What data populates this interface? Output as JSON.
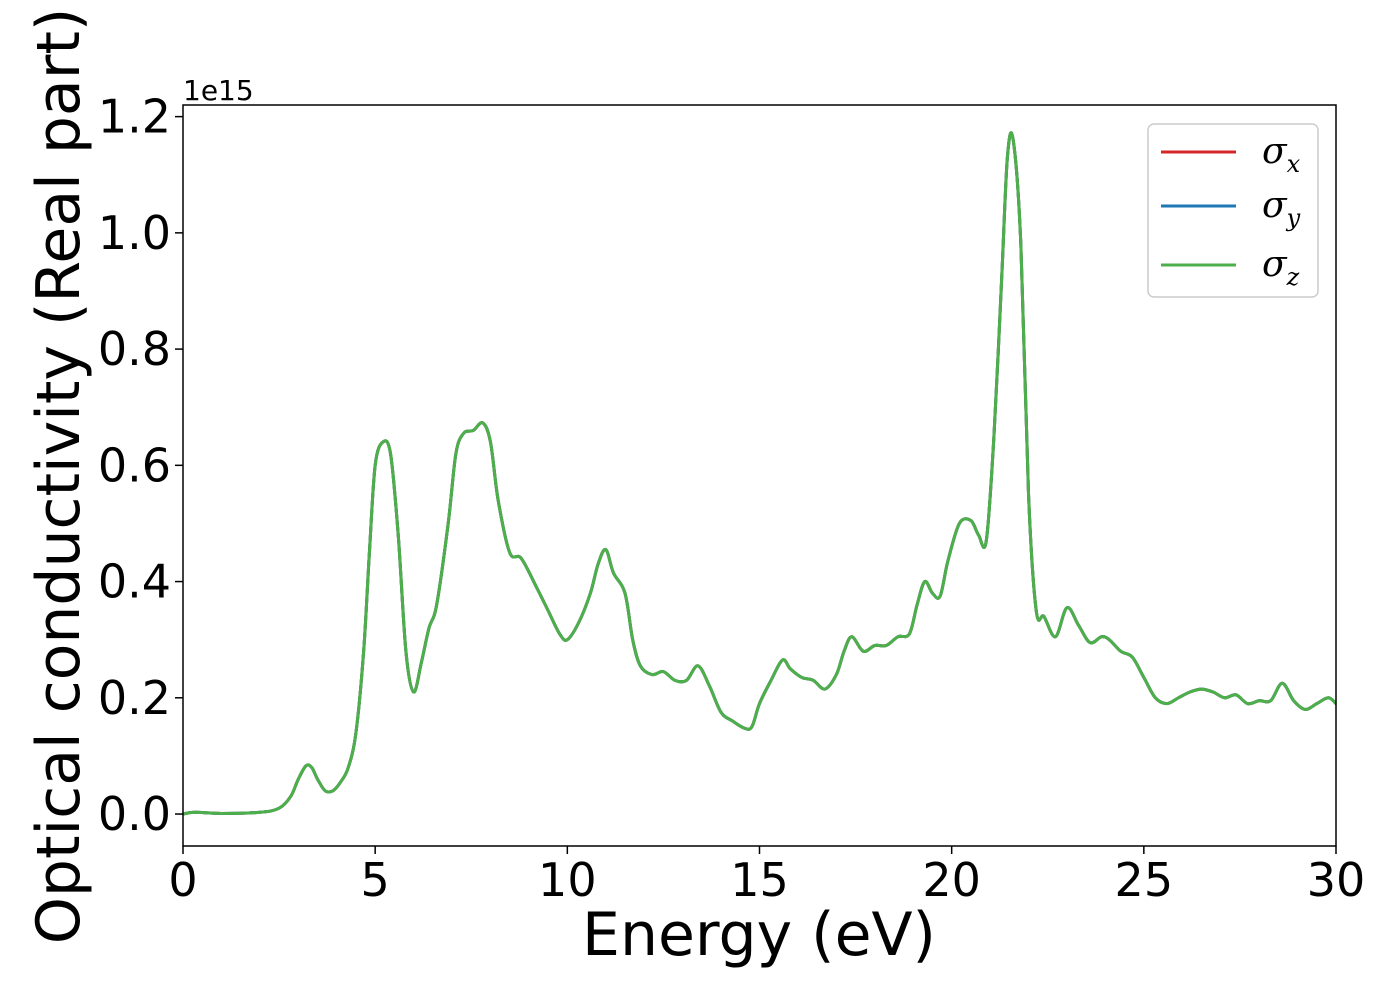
{
  "chart_data": {
    "type": "line",
    "title": "",
    "xlabel": "Energy (eV)",
    "ylabel": "Optical conductivity (Real part)",
    "y_offset_text": "1e15",
    "y_scale": 1000000000000000.0,
    "xlim": [
      0,
      30
    ],
    "ylim": [
      -0.055,
      1.22
    ],
    "xticks": [
      0,
      5,
      10,
      15,
      20,
      25,
      30
    ],
    "xtick_labels": [
      "0",
      "5",
      "10",
      "15",
      "20",
      "25",
      "30"
    ],
    "yticks": [
      0.0,
      0.2,
      0.4,
      0.6,
      0.8,
      1.0,
      1.2
    ],
    "ytick_labels": [
      "0.0",
      "0.2",
      "0.4",
      "0.6",
      "0.8",
      "1.0",
      "1.2"
    ],
    "grid": false,
    "legend_position": "top-right",
    "series": [
      {
        "name": "σx",
        "symbol": "σ",
        "subscript": "x",
        "color": "#d62728",
        "x": [
          0,
          0.3,
          1.0,
          2.0,
          2.5,
          2.8,
          3.0,
          3.2,
          3.35,
          3.5,
          3.7,
          3.9,
          4.1,
          4.3,
          4.5,
          4.7,
          4.85,
          5.0,
          5.2,
          5.4,
          5.6,
          5.8,
          6.0,
          6.2,
          6.4,
          6.6,
          6.9,
          7.1,
          7.3,
          7.55,
          7.8,
          8.0,
          8.2,
          8.5,
          8.8,
          9.2,
          9.5,
          9.8,
          10.0,
          10.3,
          10.6,
          10.8,
          11.0,
          11.2,
          11.5,
          11.7,
          11.9,
          12.2,
          12.5,
          12.8,
          13.1,
          13.4,
          13.7,
          14.0,
          14.3,
          14.6,
          14.8,
          15.0,
          15.3,
          15.6,
          15.8,
          16.1,
          16.4,
          16.7,
          17.0,
          17.2,
          17.4,
          17.7,
          18.0,
          18.3,
          18.6,
          18.9,
          19.1,
          19.3,
          19.5,
          19.7,
          19.9,
          20.2,
          20.5,
          20.7,
          20.9,
          21.1,
          21.3,
          21.45,
          21.6,
          21.8,
          22.0,
          22.2,
          22.4,
          22.7,
          23.0,
          23.3,
          23.6,
          23.9,
          24.1,
          24.4,
          24.7,
          25.0,
          25.3,
          25.6,
          25.9,
          26.2,
          26.5,
          26.8,
          27.1,
          27.4,
          27.7,
          28.0,
          28.3,
          28.6,
          28.9,
          29.2,
          29.5,
          29.8,
          30.0
        ],
        "y": [
          0.0,
          0.003,
          0.001,
          0.003,
          0.01,
          0.03,
          0.06,
          0.083,
          0.08,
          0.06,
          0.04,
          0.04,
          0.055,
          0.08,
          0.14,
          0.28,
          0.45,
          0.6,
          0.64,
          0.62,
          0.48,
          0.28,
          0.21,
          0.26,
          0.32,
          0.36,
          0.5,
          0.62,
          0.655,
          0.66,
          0.673,
          0.64,
          0.54,
          0.45,
          0.44,
          0.39,
          0.35,
          0.31,
          0.3,
          0.33,
          0.38,
          0.43,
          0.455,
          0.415,
          0.38,
          0.3,
          0.255,
          0.24,
          0.245,
          0.23,
          0.23,
          0.255,
          0.22,
          0.175,
          0.16,
          0.148,
          0.15,
          0.19,
          0.23,
          0.265,
          0.25,
          0.235,
          0.23,
          0.215,
          0.24,
          0.28,
          0.305,
          0.28,
          0.29,
          0.29,
          0.305,
          0.31,
          0.36,
          0.4,
          0.38,
          0.375,
          0.435,
          0.5,
          0.505,
          0.48,
          0.47,
          0.65,
          0.92,
          1.13,
          1.16,
          0.98,
          0.55,
          0.35,
          0.34,
          0.305,
          0.355,
          0.325,
          0.295,
          0.305,
          0.3,
          0.28,
          0.27,
          0.235,
          0.2,
          0.19,
          0.2,
          0.21,
          0.215,
          0.21,
          0.2,
          0.205,
          0.19,
          0.195,
          0.195,
          0.225,
          0.195,
          0.18,
          0.19,
          0.2,
          0.19
        ]
      },
      {
        "name": "σy",
        "symbol": "σ",
        "subscript": "y",
        "color": "#1f77b4",
        "x": [
          0,
          0.3,
          1.0,
          2.0,
          2.5,
          2.8,
          3.0,
          3.2,
          3.35,
          3.5,
          3.7,
          3.9,
          4.1,
          4.3,
          4.5,
          4.7,
          4.85,
          5.0,
          5.2,
          5.4,
          5.6,
          5.8,
          6.0,
          6.2,
          6.4,
          6.6,
          6.9,
          7.1,
          7.3,
          7.55,
          7.8,
          8.0,
          8.2,
          8.5,
          8.8,
          9.2,
          9.5,
          9.8,
          10.0,
          10.3,
          10.6,
          10.8,
          11.0,
          11.2,
          11.5,
          11.7,
          11.9,
          12.2,
          12.5,
          12.8,
          13.1,
          13.4,
          13.7,
          14.0,
          14.3,
          14.6,
          14.8,
          15.0,
          15.3,
          15.6,
          15.8,
          16.1,
          16.4,
          16.7,
          17.0,
          17.2,
          17.4,
          17.7,
          18.0,
          18.3,
          18.6,
          18.9,
          19.1,
          19.3,
          19.5,
          19.7,
          19.9,
          20.2,
          20.5,
          20.7,
          20.9,
          21.1,
          21.3,
          21.45,
          21.6,
          21.8,
          22.0,
          22.2,
          22.4,
          22.7,
          23.0,
          23.3,
          23.6,
          23.9,
          24.1,
          24.4,
          24.7,
          25.0,
          25.3,
          25.6,
          25.9,
          26.2,
          26.5,
          26.8,
          27.1,
          27.4,
          27.7,
          28.0,
          28.3,
          28.6,
          28.9,
          29.2,
          29.5,
          29.8,
          30.0
        ],
        "y": [
          0.0,
          0.003,
          0.001,
          0.003,
          0.01,
          0.03,
          0.06,
          0.083,
          0.08,
          0.06,
          0.04,
          0.04,
          0.055,
          0.08,
          0.14,
          0.28,
          0.45,
          0.6,
          0.64,
          0.62,
          0.48,
          0.28,
          0.21,
          0.26,
          0.32,
          0.36,
          0.5,
          0.62,
          0.655,
          0.66,
          0.673,
          0.64,
          0.54,
          0.45,
          0.44,
          0.39,
          0.35,
          0.31,
          0.3,
          0.33,
          0.38,
          0.43,
          0.455,
          0.415,
          0.38,
          0.3,
          0.255,
          0.24,
          0.245,
          0.23,
          0.23,
          0.255,
          0.22,
          0.175,
          0.16,
          0.148,
          0.15,
          0.19,
          0.23,
          0.265,
          0.25,
          0.235,
          0.23,
          0.215,
          0.24,
          0.28,
          0.305,
          0.28,
          0.29,
          0.29,
          0.305,
          0.31,
          0.36,
          0.4,
          0.38,
          0.375,
          0.435,
          0.5,
          0.505,
          0.48,
          0.47,
          0.65,
          0.92,
          1.13,
          1.16,
          0.98,
          0.55,
          0.35,
          0.34,
          0.305,
          0.355,
          0.325,
          0.295,
          0.305,
          0.3,
          0.28,
          0.27,
          0.235,
          0.2,
          0.19,
          0.2,
          0.21,
          0.215,
          0.21,
          0.2,
          0.205,
          0.19,
          0.195,
          0.195,
          0.225,
          0.195,
          0.18,
          0.19,
          0.2,
          0.19
        ]
      },
      {
        "name": "σz",
        "symbol": "σ",
        "subscript": "z",
        "color": "#4daf4a",
        "x": [
          0,
          0.3,
          1.0,
          2.0,
          2.5,
          2.8,
          3.0,
          3.2,
          3.35,
          3.5,
          3.7,
          3.9,
          4.1,
          4.3,
          4.5,
          4.7,
          4.85,
          5.0,
          5.2,
          5.4,
          5.6,
          5.8,
          6.0,
          6.2,
          6.4,
          6.6,
          6.9,
          7.1,
          7.3,
          7.55,
          7.8,
          8.0,
          8.2,
          8.5,
          8.8,
          9.2,
          9.5,
          9.8,
          10.0,
          10.3,
          10.6,
          10.8,
          11.0,
          11.2,
          11.5,
          11.7,
          11.9,
          12.2,
          12.5,
          12.8,
          13.1,
          13.4,
          13.7,
          14.0,
          14.3,
          14.6,
          14.8,
          15.0,
          15.3,
          15.6,
          15.8,
          16.1,
          16.4,
          16.7,
          17.0,
          17.2,
          17.4,
          17.7,
          18.0,
          18.3,
          18.6,
          18.9,
          19.1,
          19.3,
          19.5,
          19.7,
          19.9,
          20.2,
          20.5,
          20.7,
          20.9,
          21.1,
          21.3,
          21.45,
          21.6,
          21.8,
          22.0,
          22.2,
          22.4,
          22.7,
          23.0,
          23.3,
          23.6,
          23.9,
          24.1,
          24.4,
          24.7,
          25.0,
          25.3,
          25.6,
          25.9,
          26.2,
          26.5,
          26.8,
          27.1,
          27.4,
          27.7,
          28.0,
          28.3,
          28.6,
          28.9,
          29.2,
          29.5,
          29.8,
          30.0
        ],
        "y": [
          0.0,
          0.003,
          0.001,
          0.003,
          0.01,
          0.03,
          0.06,
          0.083,
          0.08,
          0.06,
          0.04,
          0.04,
          0.055,
          0.08,
          0.14,
          0.28,
          0.45,
          0.6,
          0.64,
          0.62,
          0.48,
          0.28,
          0.21,
          0.26,
          0.32,
          0.36,
          0.5,
          0.62,
          0.655,
          0.66,
          0.673,
          0.64,
          0.54,
          0.45,
          0.44,
          0.39,
          0.35,
          0.31,
          0.3,
          0.33,
          0.38,
          0.43,
          0.455,
          0.415,
          0.38,
          0.3,
          0.255,
          0.24,
          0.245,
          0.23,
          0.23,
          0.255,
          0.22,
          0.175,
          0.16,
          0.148,
          0.15,
          0.19,
          0.23,
          0.265,
          0.25,
          0.235,
          0.23,
          0.215,
          0.24,
          0.28,
          0.305,
          0.28,
          0.29,
          0.29,
          0.305,
          0.31,
          0.36,
          0.4,
          0.38,
          0.375,
          0.435,
          0.5,
          0.505,
          0.48,
          0.47,
          0.65,
          0.92,
          1.13,
          1.16,
          0.98,
          0.55,
          0.35,
          0.34,
          0.305,
          0.355,
          0.325,
          0.295,
          0.305,
          0.3,
          0.28,
          0.27,
          0.235,
          0.2,
          0.19,
          0.2,
          0.21,
          0.215,
          0.21,
          0.2,
          0.205,
          0.19,
          0.195,
          0.195,
          0.225,
          0.195,
          0.18,
          0.19,
          0.2,
          0.19
        ]
      }
    ]
  }
}
